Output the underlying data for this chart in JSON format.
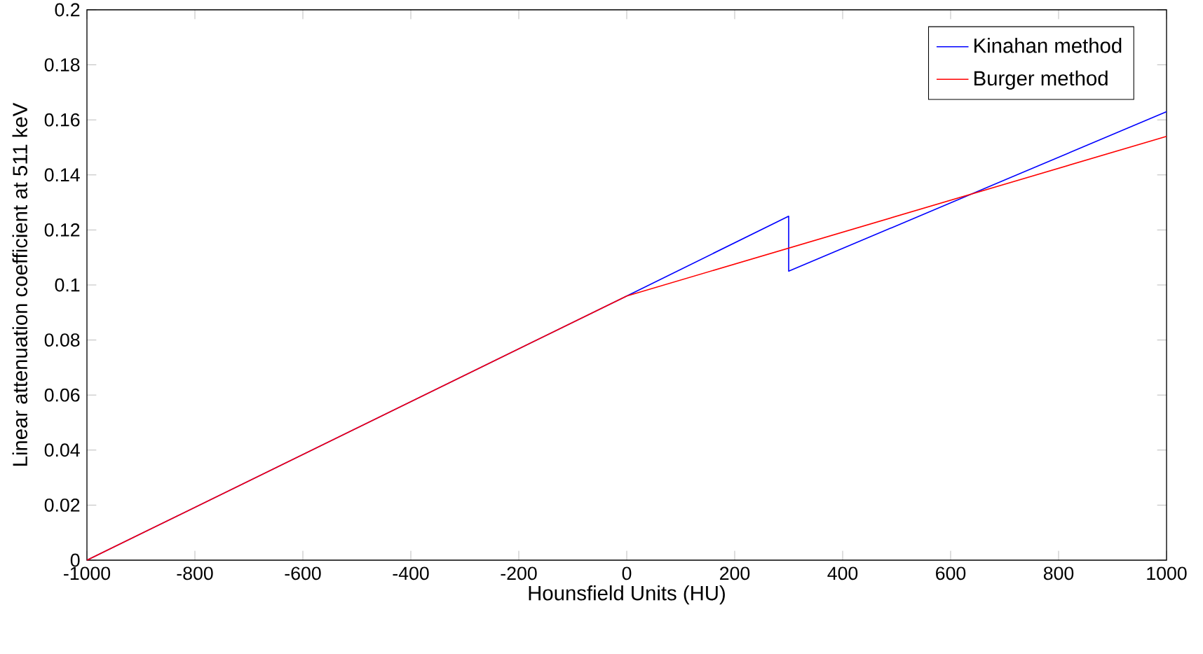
{
  "chart_data": {
    "type": "line",
    "xlabel": "Hounsfield Units (HU)",
    "ylabel": "Linear attenuation coefficient at 511 keV",
    "series": [
      {
        "name": "Kinahan method",
        "color": "#0000ff",
        "x": [
          -1000,
          0,
          300,
          300,
          1000
        ],
        "values": [
          0,
          0.096,
          0.125,
          0.105,
          0.163
        ]
      },
      {
        "name": "Burger method",
        "color": "#ff0000",
        "x": [
          -1000,
          0,
          1000
        ],
        "values": [
          0,
          0.096,
          0.154
        ]
      }
    ],
    "xlim": [
      -1000,
      1000
    ],
    "ylim": [
      0,
      0.2
    ],
    "xticks": [
      -1000,
      -800,
      -600,
      -400,
      -200,
      0,
      200,
      400,
      600,
      800,
      1000
    ],
    "yticks": [
      0,
      0.02,
      0.04,
      0.06,
      0.08,
      0.1,
      0.12,
      0.14,
      0.16,
      0.18,
      0.2
    ],
    "grid": false,
    "legend": "top right",
    "marker": "none",
    "line_style": "solid"
  }
}
